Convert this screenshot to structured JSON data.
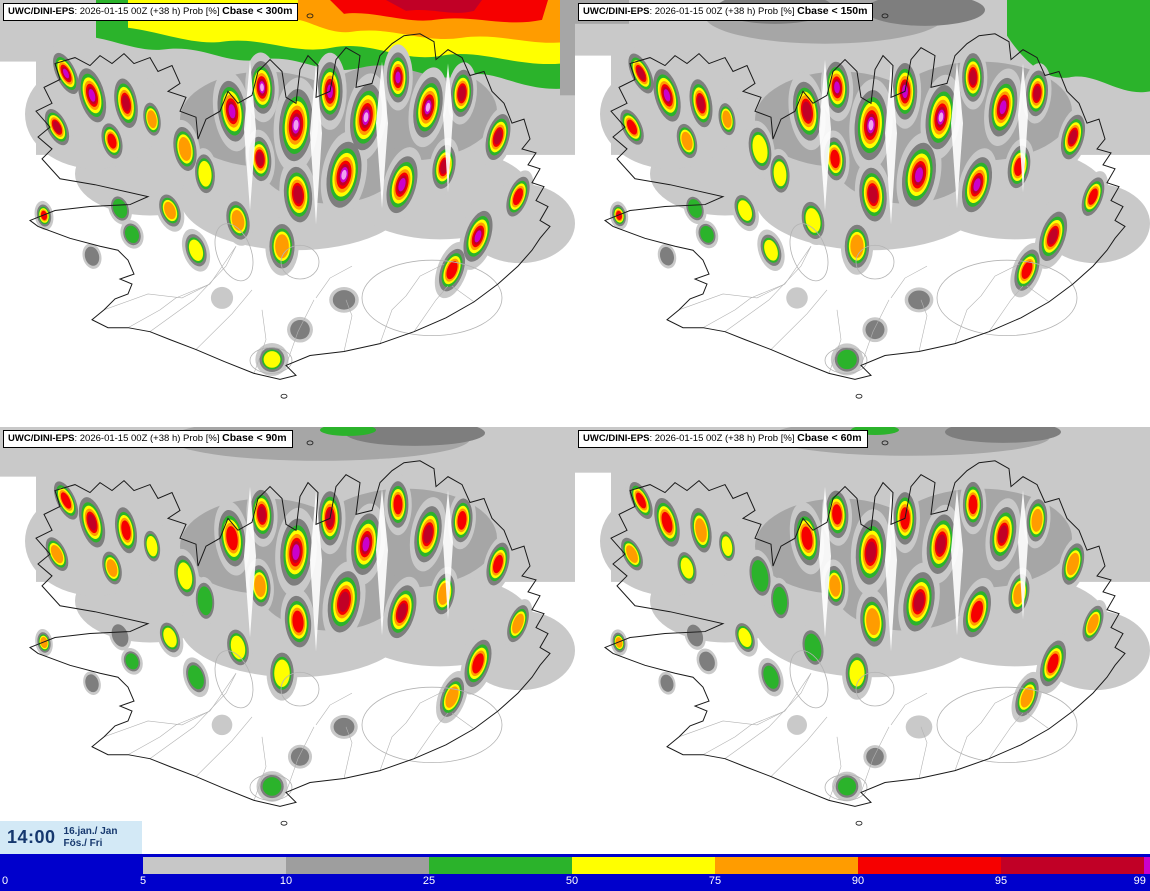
{
  "panels": [
    {
      "model": "UWC/DINI-EPS",
      "info": ": 2026-01-15 00Z (+38 h) Prob [%] ",
      "threshold": "Cbase < 300m"
    },
    {
      "model": "UWC/DINI-EPS",
      "info": ": 2026-01-15 00Z (+38 h) Prob [%] ",
      "threshold": "Cbase < 150m"
    },
    {
      "model": "UWC/DINI-EPS",
      "info": ": 2026-01-15 00Z (+38 h) Prob [%] ",
      "threshold": "Cbase < 90m"
    },
    {
      "model": "UWC/DINI-EPS",
      "info": ": 2026-01-15 00Z (+38 h) Prob [%] ",
      "threshold": "Cbase < 60m"
    }
  ],
  "time": {
    "clock": "14:00",
    "date": "16.jan./ Jan",
    "day": "Fös./ Fri",
    "background": "#d3e9f6",
    "text_color": "#16386e"
  },
  "colorbar": {
    "background": "#0000cc",
    "tick_labels": [
      "0",
      "5",
      "10",
      "25",
      "50",
      "75",
      "90",
      "95",
      "99"
    ],
    "segments": [
      {
        "range": "5-10",
        "color": "#c7c7c7"
      },
      {
        "range": "10-25",
        "color": "#9e9e9e"
      },
      {
        "range": "25-50",
        "color": "#2bb32b"
      },
      {
        "range": "50-75",
        "color": "#ffff00"
      },
      {
        "range": "75-90",
        "color": "#ff9c00"
      },
      {
        "range": "90-95",
        "color": "#f60000"
      },
      {
        "range": "95-99",
        "color": "#c10026"
      },
      {
        "range": "99+",
        "color": "#cb00cb"
      }
    ]
  },
  "map_palette": {
    "gray_light": "#c9c9c9",
    "gray_mid": "#a6a6a6",
    "gray_dark": "#7e7e7e",
    "green": "#2bb32b",
    "yellow": "#ffff00",
    "orange": "#ff9c00",
    "red": "#f60000",
    "crimson": "#c10026",
    "magenta": "#cb00cb",
    "pink": "#f0a2f0",
    "coastline": "#1a1a1a",
    "contour": "#b3b3b3"
  }
}
